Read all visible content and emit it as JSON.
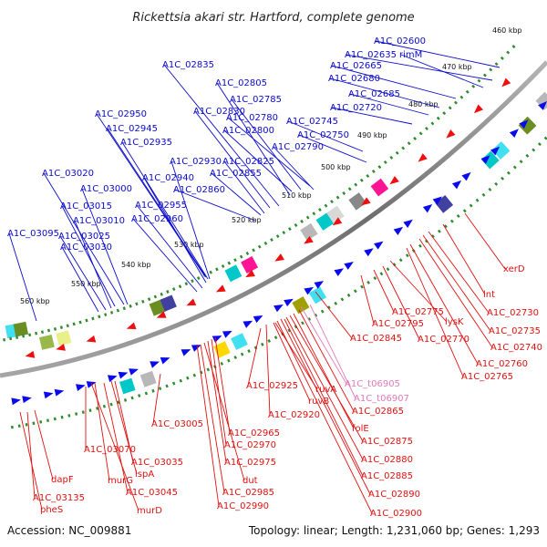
{
  "title": "Rickettsia akari str. Hartford, complete genome",
  "accession": "Accession: NC_009881",
  "summary": "Topology: linear; Length: 1,231,060 bp; Genes: 1,293",
  "colors": {
    "backbone": "#8a8a8a",
    "tick": "#2e8b2e",
    "forward_label": "#0a0acc",
    "reverse_label": "#e01010",
    "rna_label": "#e37ab8",
    "forward_arrow": "#0a0aee",
    "reverse_arrow": "#ee1010"
  },
  "ruler": [
    "460 kbp",
    "470 kbp",
    "480 kbp",
    "490 kbp",
    "500 kbp",
    "510 kbp",
    "520 kbp",
    "530 kbp",
    "540 kbp",
    "550 kbp",
    "560 kbp"
  ],
  "forward_genes": [
    "A1C_02600",
    "A1C_02635",
    "rimM",
    "A1C_02665",
    "A1C_02680",
    "A1C_02685",
    "A1C_02720",
    "A1C_02745",
    "A1C_02750",
    "A1C_02780",
    "A1C_02790",
    "A1C_02785",
    "A1C_02800",
    "A1C_02805",
    "A1C_02835",
    "A1C_02830",
    "A1C_02825",
    "A1C_02855",
    "A1C_02860",
    "A1C_02950",
    "A1C_02945",
    "A1C_02935",
    "A1C_02930",
    "A1C_02940",
    "A1C_02955",
    "A1C_02960",
    "A1C_03020",
    "A1C_03000",
    "A1C_03015",
    "A1C_03010",
    "A1C_03025",
    "A1C_03030",
    "A1C_03095"
  ],
  "reverse_genes": [
    "xerD",
    "lnt",
    "A1C_02730",
    "A1C_02735",
    "A1C_02740",
    "A1C_02760",
    "A1C_02765",
    "A1C_02770",
    "lysK",
    "A1C_02775",
    "A1C_02795",
    "A1C_02845",
    "A1C_02865",
    "folE",
    "A1C_02875",
    "A1C_02880",
    "A1C_02885",
    "A1C_02890",
    "A1C_02900",
    "ruvA",
    "ruvB",
    "A1C_02920",
    "A1C_02925",
    "A1C_02965",
    "A1C_02970",
    "A1C_02975",
    "dut",
    "A1C_02985",
    "A1C_02990",
    "A1C_03005",
    "A1C_03035",
    "lspA",
    "A1C_03045",
    "murG",
    "murD",
    "A1C_03070",
    "dapF",
    "A1C_03135",
    "pheS"
  ],
  "rna_genes": [
    "A1C_t06905",
    "A1C_t06907"
  ]
}
